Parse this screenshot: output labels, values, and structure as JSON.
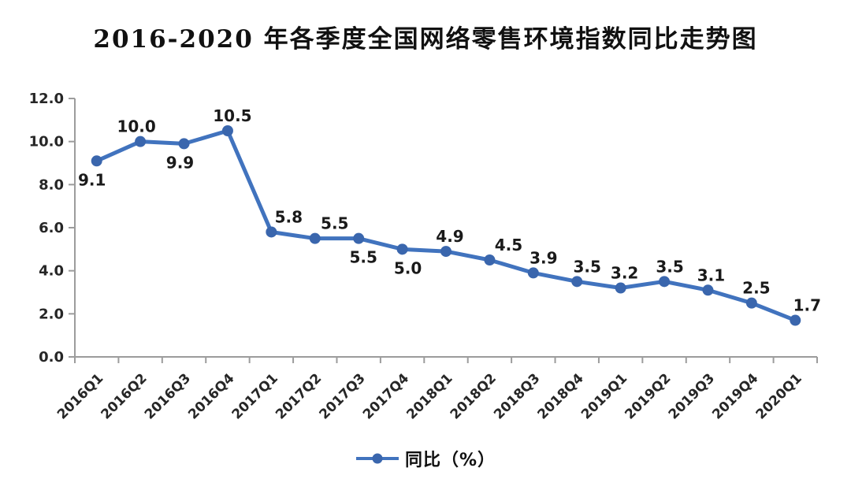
{
  "title": "2016-2020 年各季度全国网络零售环境指数同比走势图",
  "legend": {
    "label": "同比（%）",
    "marker": "line-with-dot"
  },
  "colors": {
    "line": "#4173BE",
    "marker": "#3A66AD",
    "axis": "#9C9C9C",
    "tick_label": "#262626",
    "data_label": "#1A1A1A",
    "background": "#FFFFFF"
  },
  "chart_data": {
    "type": "line",
    "title": "2016-2020 年各季度全国网络零售环境指数同比走势图",
    "categories": [
      "2016Q1",
      "2016Q2",
      "2016Q3",
      "2016Q4",
      "2017Q1",
      "2017Q2",
      "2017Q3",
      "2017Q4",
      "2018Q1",
      "2018Q2",
      "2018Q3",
      "2018Q4",
      "2019Q1",
      "2019Q2",
      "2019Q3",
      "2019Q4",
      "2020Q1"
    ],
    "series": [
      {
        "name": "同比（%）",
        "values": [
          9.1,
          10.0,
          9.9,
          10.5,
          5.8,
          5.5,
          5.5,
          5.0,
          4.9,
          4.5,
          3.9,
          3.5,
          3.2,
          3.5,
          3.1,
          2.5,
          1.7
        ]
      }
    ],
    "xlabel": "",
    "ylabel": "",
    "ylim": [
      0,
      12
    ],
    "ytick_step": 2,
    "ytick_decimals": 1,
    "grid": false,
    "legend_position": "bottom",
    "x_label_rotation": -45,
    "data_labels": {
      "show": true,
      "decimals": 1,
      "sides": [
        "below",
        "above",
        "below",
        "above",
        "above",
        "above",
        "below",
        "below",
        "above",
        "above",
        "above",
        "above",
        "above",
        "above",
        "above",
        "above",
        "above"
      ],
      "dx": [
        -6,
        -5,
        -5,
        6,
        22,
        25,
        6,
        7,
        5,
        24,
        13,
        13,
        5,
        7,
        4,
        6,
        15
      ]
    }
  }
}
